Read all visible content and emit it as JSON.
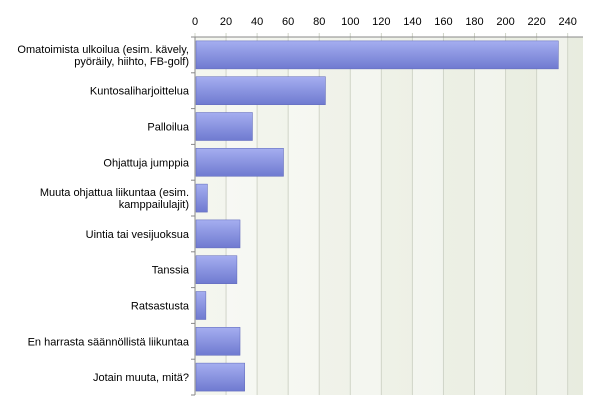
{
  "chart_data": {
    "type": "bar",
    "orientation": "horizontal",
    "title": "",
    "xlabel": "",
    "ylabel": "",
    "xlim": [
      0,
      240
    ],
    "x_ticks": [
      0,
      20,
      40,
      60,
      80,
      100,
      120,
      140,
      160,
      180,
      200,
      220,
      240
    ],
    "x_axis_position": "top",
    "grid": true,
    "legend": "none",
    "categories": [
      [
        "Omatoimista ulkoilua (esim. kävely,",
        "pyöräily, hiihto, FB-golf)"
      ],
      [
        "Kuntosaliharjoittelua"
      ],
      [
        "Palloilua"
      ],
      [
        "Ohjattuja jumppia"
      ],
      [
        "Muuta ohjattua liikuntaa (esim.",
        "kamppailulajit)"
      ],
      [
        "Uintia tai vesijuoksua"
      ],
      [
        "Tanssia"
      ],
      [
        "Ratsastusta"
      ],
      [
        "En harrasta säännöllistä liikuntaa"
      ],
      [
        "Jotain muuta, mitä?"
      ]
    ],
    "values": [
      234,
      84,
      37,
      57,
      8,
      29,
      27,
      7,
      29,
      32
    ],
    "colors": {
      "bar_fill_light": "#a5aef0",
      "bar_fill_dark": "#6f7ad0",
      "bar_stroke": "#5a64b8",
      "plot_band_light": "#f4f6ef",
      "plot_band_dark": "#e8ecdf",
      "gridline": "#d0d4c8",
      "axis": "#888888",
      "text": "#000000"
    }
  }
}
